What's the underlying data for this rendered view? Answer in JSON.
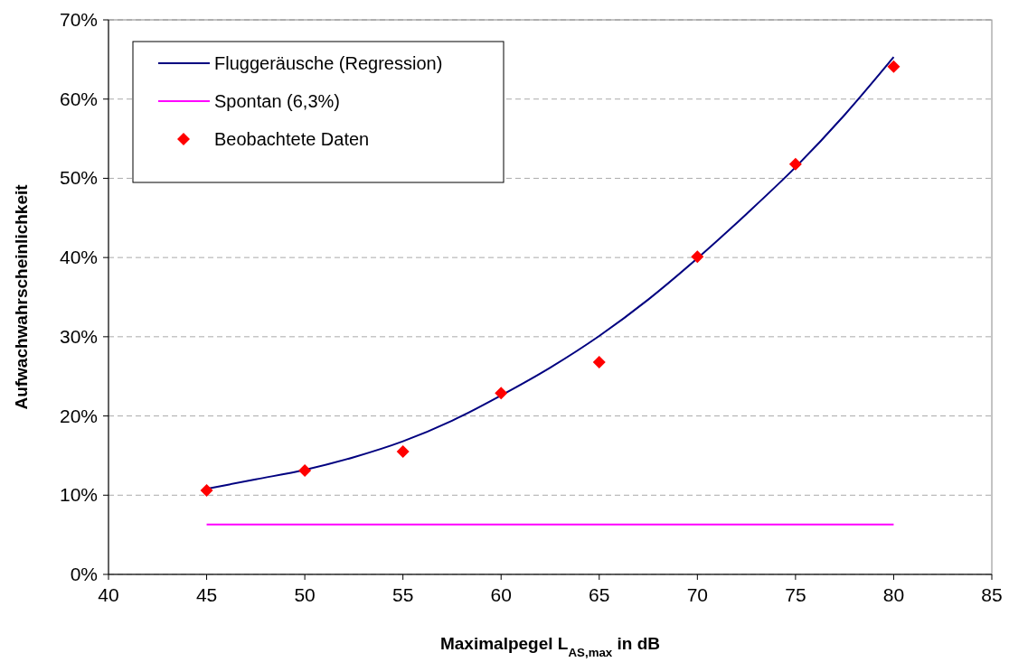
{
  "chart_data": {
    "type": "line",
    "xlabel": "Maximalpegel L$_{AS,max}$ in dB",
    "ylabel": "Aufwachwahrscheinlichkeit",
    "xlim": [
      40,
      85
    ],
    "xticks": [
      40,
      45,
      50,
      55,
      60,
      65,
      70,
      75,
      80,
      85
    ],
    "ylim": [
      0,
      70
    ],
    "yticks": [
      {
        "value": 0,
        "label": "0%"
      },
      {
        "value": 10,
        "label": "10%"
      },
      {
        "value": 20,
        "label": "20%"
      },
      {
        "value": 30,
        "label": "30%"
      },
      {
        "value": 40,
        "label": "40%"
      },
      {
        "value": 50,
        "label": "50%"
      },
      {
        "value": 60,
        "label": "60%"
      },
      {
        "value": 70,
        "label": "70%"
      }
    ],
    "grid": "y",
    "legend": "top left",
    "series": [
      {
        "name": "Fluggeräusche (Regression)",
        "type": "line",
        "color": "#000080",
        "marker": "none",
        "x": [
          45,
          47.5,
          50,
          52.5,
          55,
          57.5,
          60,
          62.5,
          65,
          67.5,
          70,
          72.5,
          75,
          77.5,
          80
        ],
        "values": [
          10.8,
          12.0,
          13.2,
          14.8,
          16.8,
          19.4,
          22.6,
          26.1,
          30.1,
          34.7,
          39.9,
          45.5,
          51.4,
          58.0,
          65.3
        ]
      },
      {
        "name": "Spontan (6,3%)",
        "type": "line",
        "color": "#ff00ff",
        "marker": "none",
        "x": [
          45,
          80
        ],
        "values": [
          6.3,
          6.3
        ]
      },
      {
        "name": "Beobachtete Daten",
        "type": "scatter",
        "color": "#ff0000",
        "marker": "diamond",
        "x": [
          45,
          50,
          55,
          60,
          65,
          70,
          75,
          80
        ],
        "values": [
          10.6,
          13.1,
          15.5,
          22.9,
          26.8,
          40.1,
          51.8,
          64.1
        ]
      }
    ]
  }
}
